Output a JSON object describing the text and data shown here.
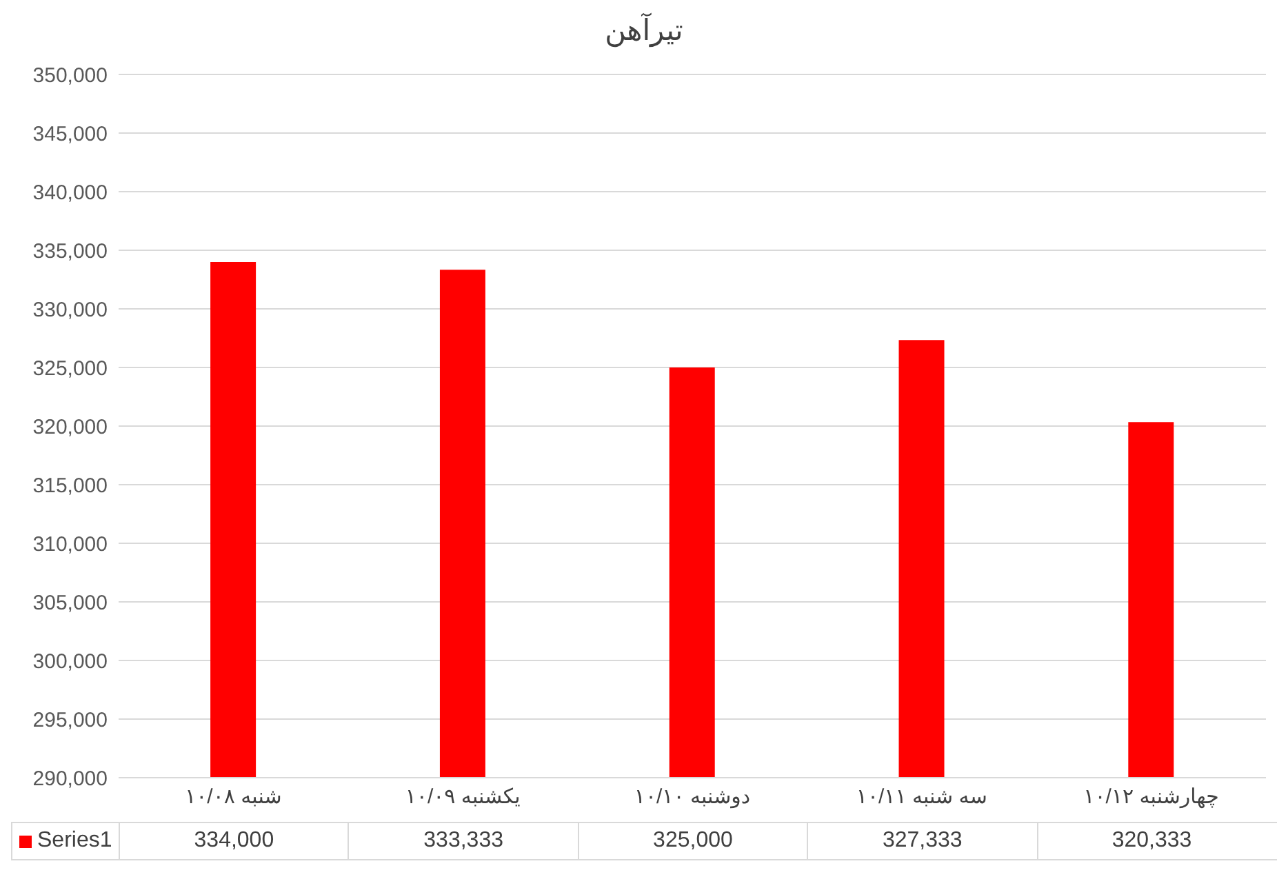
{
  "chart_data": {
    "type": "bar",
    "title": "تیرآهن",
    "categories": [
      "شنبه ۱۰/۰۸",
      "یکشنبه ۱۰/۰۹",
      "دوشنبه ۱۰/۱۰",
      "سه شنبه ۱۰/۱۱",
      "چهارشنبه ۱۰/۱۲"
    ],
    "series": [
      {
        "name": "Series1",
        "color": "#ff0000",
        "values": [
          334000,
          333333,
          325000,
          327333,
          320333
        ],
        "value_labels": [
          "334,000",
          "333,333",
          "325,000",
          "327,333",
          "320,333"
        ]
      }
    ],
    "ylim": [
      290000,
      350000
    ],
    "yticks": [
      {
        "value": 290000,
        "label": "290,000"
      },
      {
        "value": 295000,
        "label": "295,000"
      },
      {
        "value": 300000,
        "label": "300,000"
      },
      {
        "value": 305000,
        "label": "305,000"
      },
      {
        "value": 310000,
        "label": "310,000"
      },
      {
        "value": 315000,
        "label": "315,000"
      },
      {
        "value": 320000,
        "label": "320,000"
      },
      {
        "value": 325000,
        "label": "325,000"
      },
      {
        "value": 330000,
        "label": "330,000"
      },
      {
        "value": 335000,
        "label": "335,000"
      },
      {
        "value": 340000,
        "label": "340,000"
      },
      {
        "value": 345000,
        "label": "345,000"
      },
      {
        "value": 350000,
        "label": "350,000"
      }
    ],
    "grid": "y",
    "legend": "bottom"
  }
}
